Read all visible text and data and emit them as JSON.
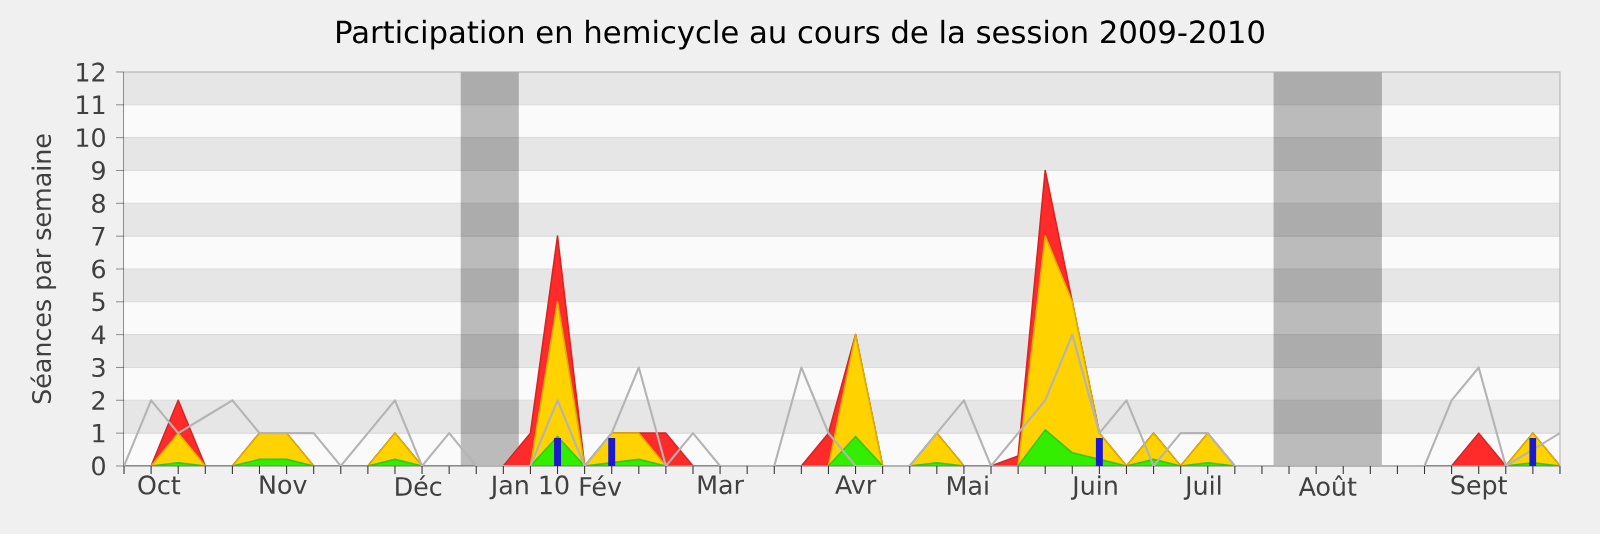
{
  "chart_data": {
    "type": "area",
    "title": "Participation en hemicycle au cours de la session 2009-2010",
    "ylabel": "Séances par semaine",
    "x": [
      "2009-09-28",
      "2009-10-05",
      "2009-10-12",
      "2009-10-19",
      "2009-10-26",
      "2009-11-02",
      "2009-11-09",
      "2009-11-16",
      "2009-11-23",
      "2009-11-30",
      "2009-12-07",
      "2009-12-14",
      "2009-12-21",
      "2009-12-28",
      "2010-01-04",
      "2010-01-11",
      "2010-01-18",
      "2010-01-25",
      "2010-02-01",
      "2010-02-08",
      "2010-02-15",
      "2010-02-22",
      "2010-03-01",
      "2010-03-08",
      "2010-03-15",
      "2010-03-22",
      "2010-03-29",
      "2010-04-05",
      "2010-04-12",
      "2010-04-19",
      "2010-04-26",
      "2010-05-03",
      "2010-05-10",
      "2010-05-17",
      "2010-05-24",
      "2010-05-31",
      "2010-06-07",
      "2010-06-14",
      "2010-06-21",
      "2010-06-28",
      "2010-07-05",
      "2010-07-12",
      "2010-07-19",
      "2010-07-26",
      "2010-08-02",
      "2010-08-09",
      "2010-08-16",
      "2010-08-23",
      "2010-08-30",
      "2010-09-06",
      "2010-09-13",
      "2010-09-20",
      "2010-09-27",
      "2010-10-04"
    ],
    "xlim": [
      "2009-09-28",
      "2010-10-04"
    ],
    "ylim": [
      0,
      12
    ],
    "xticks": [
      {
        "value": "2009-10-07",
        "label": "Oct"
      },
      {
        "value": "2009-11-08",
        "label": "Nov"
      },
      {
        "value": "2009-12-13",
        "label": "Déc"
      },
      {
        "value": "2010-01-11",
        "label": "Jan 10"
      },
      {
        "value": "2010-01-29",
        "label": "Fév"
      },
      {
        "value": "2010-03-01",
        "label": "Mar"
      },
      {
        "value": "2010-04-05",
        "label": "Avr"
      },
      {
        "value": "2010-05-04",
        "label": "Mai"
      },
      {
        "value": "2010-06-06",
        "label": "Juin"
      },
      {
        "value": "2010-07-04",
        "label": "Juil"
      },
      {
        "value": "2010-08-05",
        "label": "Août"
      },
      {
        "value": "2010-09-13",
        "label": "Sept"
      },
      {
        "value": "2009-09-28",
        "label": null
      },
      {
        "value": "2009-10-05",
        "label": null
      },
      {
        "value": "2009-10-12",
        "label": null
      },
      {
        "value": "2009-10-19",
        "label": null
      },
      {
        "value": "2009-10-26",
        "label": null
      },
      {
        "value": "2009-11-02",
        "label": null
      },
      {
        "value": "2009-11-09",
        "label": null
      },
      {
        "value": "2009-11-16",
        "label": null
      },
      {
        "value": "2009-11-23",
        "label": null
      },
      {
        "value": "2009-11-30",
        "label": null
      },
      {
        "value": "2009-12-07",
        "label": null
      },
      {
        "value": "2009-12-14",
        "label": null
      },
      {
        "value": "2009-12-21",
        "label": null
      },
      {
        "value": "2009-12-28",
        "label": null
      },
      {
        "value": "2010-01-04",
        "label": null
      },
      {
        "value": "2010-01-11",
        "label": null
      },
      {
        "value": "2010-01-18",
        "label": null
      },
      {
        "value": "2010-01-25",
        "label": null
      },
      {
        "value": "2010-02-01",
        "label": null
      },
      {
        "value": "2010-02-08",
        "label": null
      },
      {
        "value": "2010-02-15",
        "label": null
      },
      {
        "value": "2010-02-22",
        "label": null
      },
      {
        "value": "2010-03-01",
        "label": null
      },
      {
        "value": "2010-03-08",
        "label": null
      },
      {
        "value": "2010-03-15",
        "label": null
      },
      {
        "value": "2010-03-22",
        "label": null
      },
      {
        "value": "2010-03-29",
        "label": null
      },
      {
        "value": "2010-04-05",
        "label": null
      },
      {
        "value": "2010-04-12",
        "label": null
      },
      {
        "value": "2010-04-19",
        "label": null
      },
      {
        "value": "2010-04-26",
        "label": null
      },
      {
        "value": "2010-05-03",
        "label": null
      },
      {
        "value": "2010-05-10",
        "label": null
      },
      {
        "value": "2010-05-17",
        "label": null
      },
      {
        "value": "2010-05-24",
        "label": null
      },
      {
        "value": "2010-05-31",
        "label": null
      },
      {
        "value": "2010-06-07",
        "label": null
      },
      {
        "value": "2010-06-14",
        "label": null
      },
      {
        "value": "2010-06-21",
        "label": null
      },
      {
        "value": "2010-06-28",
        "label": null
      },
      {
        "value": "2010-07-05",
        "label": null
      },
      {
        "value": "2010-07-12",
        "label": null
      },
      {
        "value": "2010-07-19",
        "label": null
      },
      {
        "value": "2010-07-26",
        "label": null
      },
      {
        "value": "2010-08-02",
        "label": null
      },
      {
        "value": "2010-08-09",
        "label": null
      },
      {
        "value": "2010-08-16",
        "label": null
      },
      {
        "value": "2010-08-23",
        "label": null
      },
      {
        "value": "2010-08-30",
        "label": null
      },
      {
        "value": "2010-09-06",
        "label": null
      },
      {
        "value": "2010-09-13",
        "label": null
      },
      {
        "value": "2010-09-20",
        "label": null
      },
      {
        "value": "2010-09-27",
        "label": null
      },
      {
        "value": "2010-10-04",
        "label": null
      }
    ],
    "yticks": [
      0,
      1,
      2,
      3,
      4,
      5,
      6,
      7,
      8,
      9,
      10,
      11,
      12
    ],
    "grid": "y",
    "bands": [
      {
        "axis": "x",
        "from": "2009-12-24",
        "to": "2010-01-08"
      },
      {
        "axis": "x",
        "from": "2010-07-22",
        "to": "2010-08-19"
      }
    ],
    "series": [
      {
        "type": "line",
        "color": "#b4b4b4",
        "values": [
          0,
          2,
          1,
          1.5,
          2,
          1,
          1,
          1,
          0,
          1,
          2,
          0,
          1,
          0,
          0,
          0,
          2,
          0,
          1,
          3,
          0,
          1,
          0,
          0,
          0,
          3,
          1,
          0,
          0,
          0,
          1,
          2,
          0,
          1,
          2,
          4,
          1,
          2,
          0,
          1,
          1,
          0,
          0,
          0,
          0,
          0,
          0,
          0,
          0,
          2,
          3,
          0,
          0.5,
          1
        ]
      },
      {
        "color": "#ff2a2a",
        "values": [
          0,
          0,
          2,
          0,
          0,
          1,
          1,
          0,
          0,
          0,
          1,
          0,
          0,
          0,
          0,
          1,
          7,
          0,
          1,
          1,
          1,
          0,
          0,
          0,
          0,
          0,
          1,
          4,
          0,
          0,
          1,
          0,
          0,
          0.3,
          9,
          5,
          1,
          0,
          1,
          0,
          1,
          0,
          0,
          0,
          0,
          0,
          0,
          0,
          0,
          0,
          1,
          0,
          1,
          0
        ]
      },
      {
        "color": "#ffd200",
        "values": [
          0,
          0,
          1,
          0,
          0,
          1,
          1,
          0,
          0,
          0,
          1,
          0,
          0,
          0,
          0,
          0,
          5,
          0,
          1,
          1,
          0,
          0,
          0,
          0,
          0,
          0,
          0,
          4,
          0,
          0,
          1,
          0,
          0,
          0,
          7,
          5,
          1,
          0,
          1,
          0,
          1,
          0,
          0,
          0,
          0,
          0,
          0,
          0,
          0,
          0,
          0,
          0,
          1,
          0
        ]
      },
      {
        "color": "#33ee00",
        "values": [
          0,
          0,
          0.1,
          0,
          0,
          0.2,
          0.2,
          0,
          0,
          0,
          0.2,
          0,
          0,
          0,
          0,
          0,
          0.9,
          0,
          0.1,
          0.2,
          0,
          0,
          0,
          0,
          0,
          0,
          0,
          0.9,
          0,
          0,
          0.1,
          0,
          0,
          0,
          1.1,
          0.4,
          0.2,
          0,
          0.2,
          0,
          0.1,
          0,
          0,
          0,
          0,
          0,
          0,
          0,
          0,
          0,
          0,
          0,
          0.1,
          0
        ]
      },
      {
        "type": "bar",
        "color": "#1a1acc",
        "values": [
          null,
          null,
          null,
          null,
          null,
          null,
          null,
          null,
          null,
          null,
          null,
          null,
          null,
          null,
          null,
          null,
          0.85,
          null,
          0.85,
          null,
          null,
          null,
          null,
          null,
          null,
          null,
          null,
          null,
          null,
          null,
          null,
          null,
          null,
          null,
          null,
          null,
          0.85,
          null,
          null,
          null,
          null,
          null,
          null,
          null,
          null,
          null,
          null,
          null,
          null,
          null,
          null,
          null,
          0.85,
          null
        ]
      }
    ]
  }
}
